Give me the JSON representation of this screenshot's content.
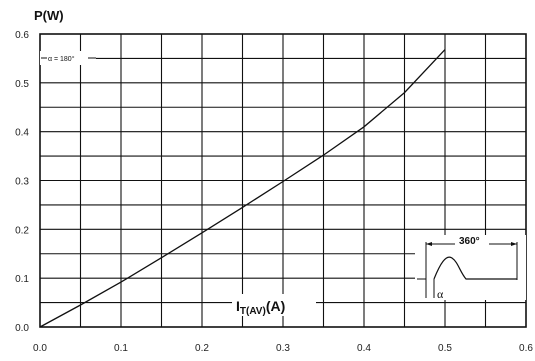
{
  "chart_data": {
    "type": "line",
    "ylabel": "P(W)",
    "xlabel_main": "I",
    "xlabel_sub": "T(AV)",
    "xlabel_unit": "(A)",
    "xlim": [
      0.0,
      0.6
    ],
    "ylim": [
      0.0,
      0.6
    ],
    "x_ticks": [
      "0.0",
      "0.1",
      "0.2",
      "0.3",
      "0.4",
      "0.5",
      "0.6"
    ],
    "y_ticks": [
      "0.0",
      "0.1",
      "0.2",
      "0.3",
      "0.4",
      "0.5",
      "0.6"
    ],
    "grid": true,
    "series": [
      {
        "x": [
          0.0,
          0.05,
          0.1,
          0.15,
          0.2,
          0.25,
          0.3,
          0.35,
          0.4,
          0.45,
          0.5
        ],
        "y": [
          0.0,
          0.045,
          0.092,
          0.142,
          0.193,
          0.245,
          0.298,
          0.352,
          0.41,
          0.48,
          0.568
        ]
      }
    ],
    "annotation_label": "α = 180°",
    "inset": {
      "period_label": "360°",
      "angle_label": "α"
    }
  }
}
